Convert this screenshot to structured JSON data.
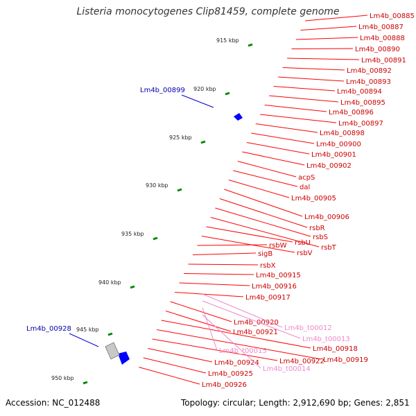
{
  "title": "Listeria monocytogenes Clip81459, complete genome",
  "accession": "Accession: NC_012488",
  "topology": "Topology: circular; Length: 2,912,690 bp; Genes: 2,851",
  "colors": {
    "cds": "#ff0000",
    "trna": "#ee88cc",
    "highlight": "#0000cc",
    "backbone": "#808080"
  },
  "ticks": [
    "915 kbp",
    "920 kbp",
    "925 kbp",
    "930 kbp",
    "935 kbp",
    "940 kbp",
    "945 kbp",
    "950 kbp"
  ],
  "genes_right": [
    "Lm4b_00885",
    "Lm4b_00887",
    "Lm4b_00888",
    "Lm4b_00890",
    "Lm4b_00891",
    "Lm4b_00892",
    "Lm4b_00893",
    "Lm4b_00894",
    "Lm4b_00895",
    "Lm4b_00896",
    "Lm4b_00897",
    "Lm4b_00898",
    "Lm4b_00900",
    "Lm4b_00901",
    "Lm4b_00902",
    "acpS",
    "dal",
    "Lm4b_00905",
    "Lm4b_00906",
    "rsbR",
    "rsbS",
    "rsbT",
    "rsbU",
    "rsbV",
    "rsbW",
    "sigB",
    "rsbX",
    "Lm4b_00915",
    "Lm4b_00916",
    "Lm4b_00917",
    "Lm4b_00920",
    "Lm4b_00921",
    "Lm4b_00918",
    "Lm4b_00919",
    "Lm4b_00922",
    "Lm4b_00924",
    "Lm4b_00925",
    "Lm4b_00926"
  ],
  "trna": [
    "Lm4b_t00012",
    "Lm4b_t00013",
    "Lm4b_t00015",
    "Lm4b_t00014"
  ],
  "genes_left": [
    "Lm4b_00899",
    "Lm4b_00928"
  ]
}
